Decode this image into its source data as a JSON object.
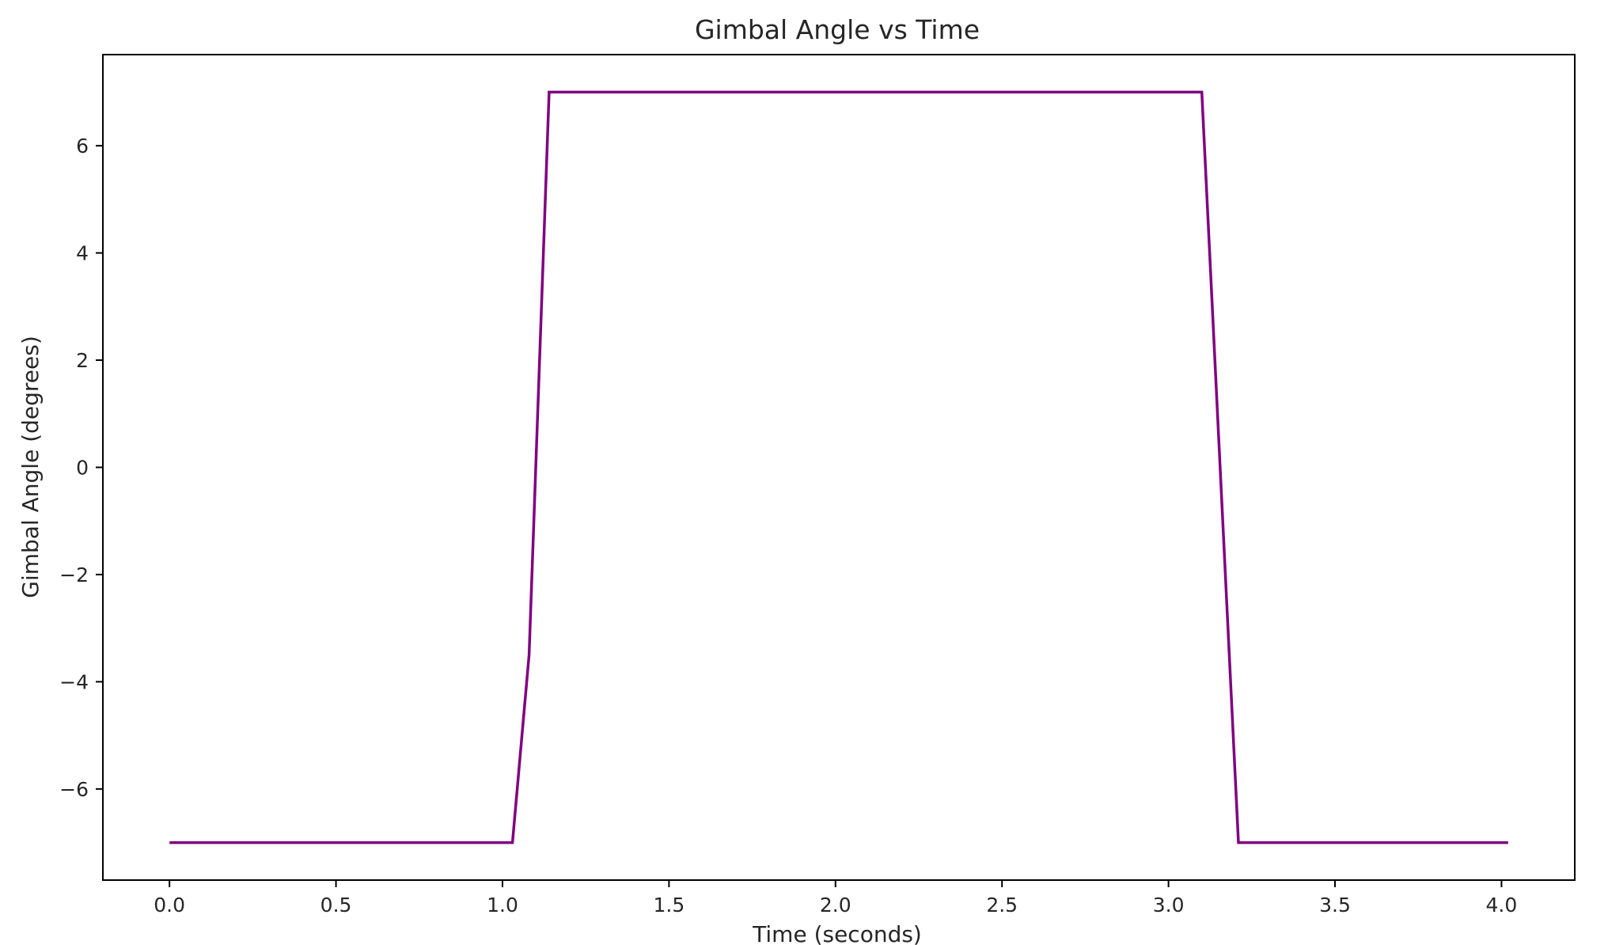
{
  "chart_data": {
    "type": "line",
    "title": "Gimbal Angle vs Time",
    "xlabel": "Time (seconds)",
    "ylabel": "Gimbal Angle (degrees)",
    "xlim": [
      -0.2,
      4.22
    ],
    "ylim": [
      -7.7,
      7.7
    ],
    "xticks": [
      0.0,
      0.5,
      1.0,
      1.5,
      2.0,
      2.5,
      3.0,
      3.5,
      4.0
    ],
    "xtick_labels": [
      "0.0",
      "0.5",
      "1.0",
      "1.5",
      "2.0",
      "2.5",
      "3.0",
      "3.5",
      "4.0"
    ],
    "yticks": [
      -6,
      -4,
      -2,
      0,
      2,
      4,
      6
    ],
    "ytick_labels": [
      "−6",
      "−4",
      "−2",
      "0",
      "2",
      "4",
      "6"
    ],
    "grid": false,
    "series": [
      {
        "color": "#800080",
        "x": [
          0.0,
          1.03,
          1.08,
          1.14,
          3.1,
          3.21,
          4.02
        ],
        "y": [
          -7.0,
          -7.0,
          -3.5,
          7.0,
          7.0,
          -7.0,
          -7.0
        ]
      }
    ]
  }
}
